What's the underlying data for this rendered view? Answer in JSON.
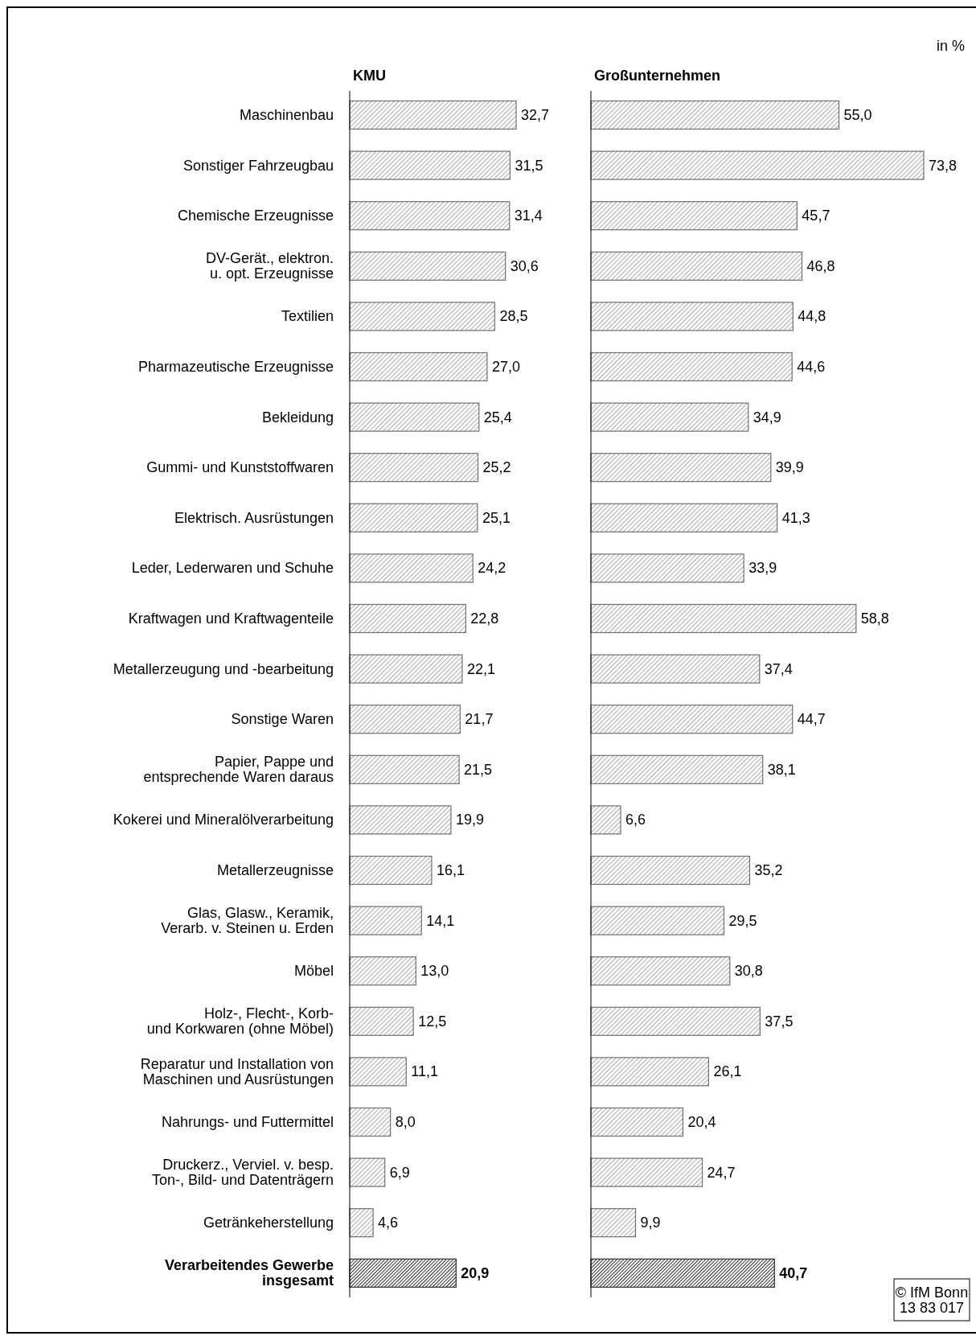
{
  "chart_data": [
    {
      "type": "bar",
      "orientation": "horizontal",
      "title": "KMU",
      "data_labels": true,
      "categories": [
        "Maschinenbau",
        "Sonstiger Fahrzeugbau",
        "Chemische Erzeugnisse",
        "DV-Gerät., elektron.\nu. opt. Erzeugnisse",
        "Textilien",
        "Pharmazeutische Erzeugnisse",
        "Bekleidung",
        "Gummi- und Kunststoffwaren",
        "Elektrisch. Ausrüstungen",
        "Leder, Lederwaren und Schuhe",
        "Kraftwagen und Kraftwagenteile",
        "Metallerzeugung und -bearbeitung",
        "Sonstige Waren",
        "Papier, Pappe und\nentsprechende Waren daraus",
        "Kokerei und Mineralölverarbeitung",
        "Metallerzeugnisse",
        "Glas, Glasw., Keramik,\nVerarb. v. Steinen u. Erden",
        "Möbel",
        "Holz-, Flecht-, Korb-\nund Korkwaren (ohne Möbel)",
        "Reparatur und Installation von\nMaschinen und Ausrüstungen",
        "Nahrungs- und Futtermittel",
        "Druckerz., Verviel. v. besp.\nTon-, Bild- und Datenträgern",
        "Getränkeherstellung",
        "Verarbeitendes Gewerbe\ninsgesamt"
      ],
      "values": [
        32.7,
        31.5,
        31.4,
        30.6,
        28.5,
        27.0,
        25.4,
        25.2,
        25.1,
        24.2,
        22.8,
        22.1,
        21.7,
        21.5,
        19.9,
        16.1,
        14.1,
        13.0,
        12.5,
        11.1,
        8.0,
        6.9,
        4.6,
        20.9
      ],
      "value_labels": [
        "32,7",
        "31,5",
        "31,4",
        "30,6",
        "28,5",
        "27,0",
        "25,4",
        "25,2",
        "25,1",
        "24,2",
        "22,8",
        "22,1",
        "21,7",
        "21,5",
        "19,9",
        "16,1",
        "14,1",
        "13,0",
        "12,5",
        "11,1",
        "8,0",
        "6,9",
        "4,6",
        "20,9"
      ],
      "colors": [
        "#707070",
        "#707070",
        "#707070",
        "#707070",
        "#707070",
        "#707070",
        "#707070",
        "#707070",
        "#707070",
        "#707070",
        "#707070",
        "#707070",
        "#707070",
        "#707070",
        "#707070",
        "#707070",
        "#707070",
        "#707070",
        "#707070",
        "#707070",
        "#707070",
        "#707070",
        "#707070",
        "#303030"
      ]
    },
    {
      "type": "bar",
      "orientation": "horizontal",
      "title": "Großunternehmen",
      "data_labels": true,
      "annotations": [
        "in %",
        "© IfM Bonn\n13 83 017"
      ],
      "categories": [
        null,
        null,
        null,
        null,
        null,
        null,
        null,
        null,
        null,
        null,
        null,
        null,
        null,
        null,
        null,
        null,
        null,
        null,
        null,
        null,
        null,
        null,
        null,
        null
      ],
      "values": [
        55.0,
        73.8,
        45.7,
        46.8,
        44.8,
        44.6,
        34.9,
        39.9,
        41.3,
        33.9,
        58.8,
        37.4,
        44.7,
        38.1,
        6.6,
        35.2,
        29.5,
        30.8,
        37.5,
        26.1,
        20.4,
        24.7,
        9.9,
        40.7
      ],
      "value_labels": [
        "55,0",
        "73,8",
        "45,7",
        "46,8",
        "44,8",
        "44,6",
        "34,9",
        "39,9",
        "41,3",
        "33,9",
        "58,8",
        "37,4",
        "44,7",
        "38,1",
        "6,6",
        "35,2",
        "29,5",
        "30,8",
        "37,5",
        "26,1",
        "20,4",
        "24,7",
        "9,9",
        "40,7"
      ],
      "colors": [
        "#707070",
        "#707070",
        "#707070",
        "#707070",
        "#707070",
        "#707070",
        "#707070",
        "#707070",
        "#707070",
        "#707070",
        "#707070",
        "#707070",
        "#707070",
        "#707070",
        "#707070",
        "#707070",
        "#707070",
        "#707070",
        "#707070",
        "#707070",
        "#707070",
        "#707070",
        "#707070",
        "#303030"
      ]
    }
  ]
}
